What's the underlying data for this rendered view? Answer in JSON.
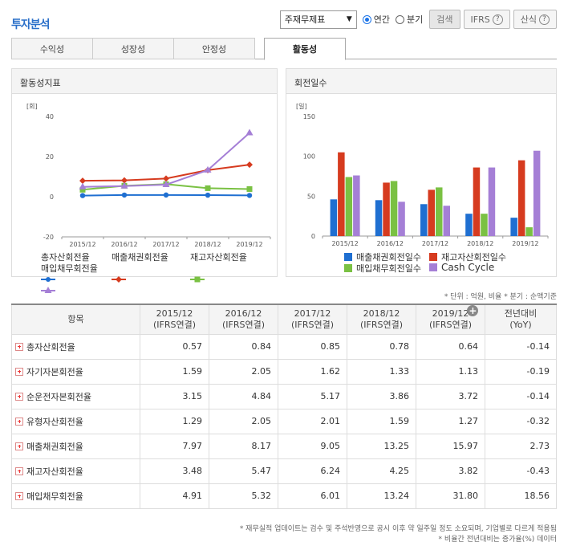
{
  "page_title": "투자분석",
  "controls": {
    "statement_select": "주재무제표",
    "radio_annual": "연간",
    "radio_quarter": "분기",
    "search_button": "검색",
    "ifrs_button": "IFRS",
    "formula_button": "산식",
    "help_glyph": "?"
  },
  "tabs": [
    {
      "label": "수익성",
      "active": false
    },
    {
      "label": "성장성",
      "active": false
    },
    {
      "label": "안정성",
      "active": false
    },
    {
      "label": "활동성",
      "active": true
    }
  ],
  "chart_data": [
    {
      "type": "line",
      "title": "활동성지표",
      "unit": "[회]",
      "categories": [
        "2015/12",
        "2016/12",
        "2017/12",
        "2018/12",
        "2019/12"
      ],
      "ylim": [
        -20,
        40
      ],
      "yticks": [
        "40",
        "20",
        "0",
        "-20"
      ],
      "series": [
        {
          "name": "총자산회전율",
          "color": "#1f6fd1",
          "marker": "circle",
          "values": [
            0.57,
            0.84,
            0.85,
            0.78,
            0.64
          ]
        },
        {
          "name": "매출채권회전율",
          "color": "#d63b1f",
          "marker": "diamond",
          "values": [
            7.97,
            8.17,
            9.05,
            13.25,
            15.97
          ]
        },
        {
          "name": "재고자산회전율",
          "color": "#7ac143",
          "marker": "square",
          "values": [
            3.48,
            5.47,
            6.24,
            4.25,
            3.82
          ]
        },
        {
          "name": "매입채무회전율",
          "color": "#a57fd6",
          "marker": "triangle",
          "values": [
            4.91,
            5.32,
            6.01,
            13.24,
            31.8
          ]
        }
      ]
    },
    {
      "type": "bar",
      "title": "회전일수",
      "unit": "[일]",
      "categories": [
        "2015/12",
        "2016/12",
        "2017/12",
        "2018/12",
        "2019/12"
      ],
      "ylim": [
        0,
        150
      ],
      "yticks": [
        "150",
        "100",
        "50",
        "0"
      ],
      "series": [
        {
          "name": "매출채권회전일수",
          "color": "#1f6fd1",
          "values": [
            46,
            45,
            40,
            28,
            23
          ]
        },
        {
          "name": "재고자산회전일수",
          "color": "#d63b1f",
          "values": [
            105,
            67,
            58,
            86,
            95
          ]
        },
        {
          "name": "매입채무회전일수",
          "color": "#7ac143",
          "values": [
            74,
            69,
            61,
            28,
            11
          ]
        },
        {
          "name": "Cash Cycle",
          "color": "#a57fd6",
          "values": [
            76,
            43,
            38,
            86,
            107
          ]
        }
      ]
    }
  ],
  "unit_note": "* 단위 : 억원, 비율   * 분기 : 순액기준",
  "table": {
    "header_item": "항목",
    "periods": [
      {
        "year": "2015/12",
        "basis": "(IFRS연결)"
      },
      {
        "year": "2016/12",
        "basis": "(IFRS연결)"
      },
      {
        "year": "2017/12",
        "basis": "(IFRS연결)"
      },
      {
        "year": "2018/12",
        "basis": "(IFRS연결)"
      },
      {
        "year": "2019/12",
        "basis": "(IFRS연결)"
      }
    ],
    "yoy_header": "전년대비",
    "yoy_sub": "(YoY)",
    "add_glyph": "+",
    "rows": [
      {
        "label": "총자산회전율",
        "values": [
          "0.57",
          "0.84",
          "0.85",
          "0.78",
          "0.64"
        ],
        "yoy": "-0.14",
        "neg": true
      },
      {
        "label": "자기자본회전율",
        "values": [
          "1.59",
          "2.05",
          "1.62",
          "1.33",
          "1.13"
        ],
        "yoy": "-0.19",
        "neg": true
      },
      {
        "label": "순운전자본회전율",
        "values": [
          "3.15",
          "4.84",
          "5.17",
          "3.86",
          "3.72"
        ],
        "yoy": "-0.14",
        "neg": true
      },
      {
        "label": "유형자산회전율",
        "values": [
          "1.29",
          "2.05",
          "2.01",
          "1.59",
          "1.27"
        ],
        "yoy": "-0.32",
        "neg": true
      },
      {
        "label": "매출채권회전율",
        "values": [
          "7.97",
          "8.17",
          "9.05",
          "13.25",
          "15.97"
        ],
        "yoy": "2.73",
        "neg": false
      },
      {
        "label": "재고자산회전율",
        "values": [
          "3.48",
          "5.47",
          "6.24",
          "4.25",
          "3.82"
        ],
        "yoy": "-0.43",
        "neg": true
      },
      {
        "label": "매입채무회전율",
        "values": [
          "4.91",
          "5.32",
          "6.01",
          "13.24",
          "31.80"
        ],
        "yoy": "18.56",
        "neg": false
      }
    ]
  },
  "footnotes": [
    "* 재무실적 업데이트는 검수 및 주석반영으로 공시 이후 약 일주일 정도 소요되며, 기업별로 다르게 적용됨",
    "* 비율간 전년대비는 증가율(%) 데이터"
  ]
}
